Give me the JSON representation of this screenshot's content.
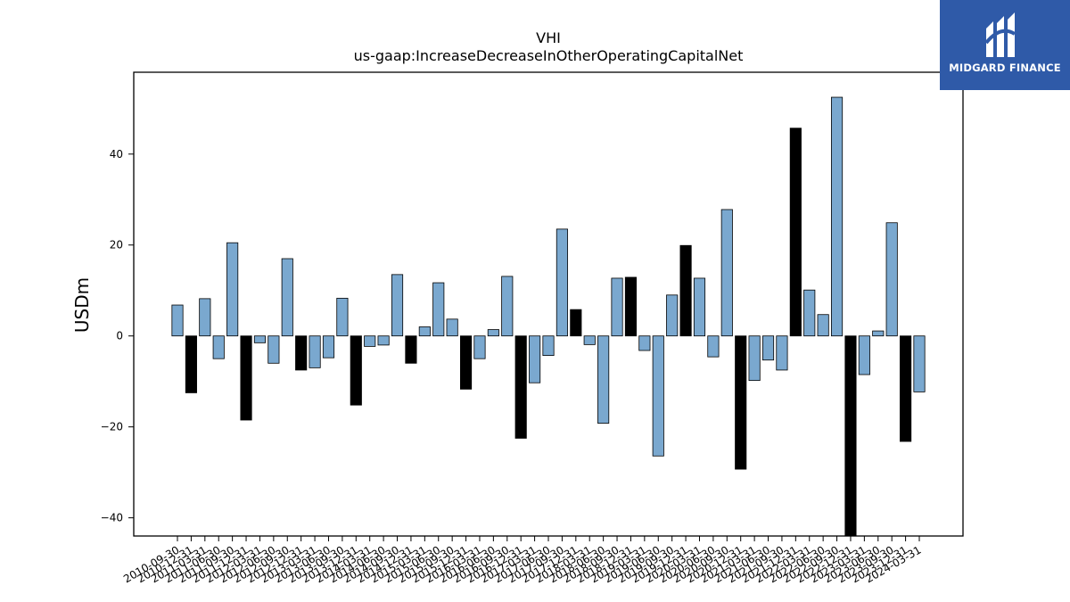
{
  "logo": {
    "text": "MIDGARD FINANCE"
  },
  "chart_data": {
    "type": "bar",
    "title": "VHI",
    "subtitle": "us-gaap:IncreaseDecreaseInOtherOperatingCapitalNet",
    "xlabel": "",
    "ylabel": "USDm",
    "ylim": [
      -44,
      58
    ],
    "yticks": [
      -40,
      -20,
      0,
      20,
      40
    ],
    "grid": false,
    "colors": {
      "highlight": "#000000",
      "normal": "#7aa8cf",
      "edge": "#000000"
    },
    "categories": [
      "2010-09-30",
      "2010-12-31",
      "2011-03-31",
      "2011-06-30",
      "2011-09-30",
      "2011-12-31",
      "2012-03-31",
      "2012-06-30",
      "2012-09-30",
      "2012-12-31",
      "2013-03-31",
      "2013-06-30",
      "2013-09-30",
      "2013-12-31",
      "2014-03-31",
      "2014-06-30",
      "2014-09-30",
      "2014-12-31",
      "2015-03-31",
      "2015-06-30",
      "2015-09-30",
      "2015-12-31",
      "2016-03-31",
      "2016-06-30",
      "2016-09-30",
      "2016-12-31",
      "2017-03-31",
      "2017-06-30",
      "2017-09-30",
      "2017-12-31",
      "2018-03-31",
      "2018-06-30",
      "2018-09-30",
      "2018-12-31",
      "2019-03-31",
      "2019-06-30",
      "2019-09-30",
      "2019-12-31",
      "2020-03-31",
      "2020-06-30",
      "2020-09-30",
      "2020-12-31",
      "2021-03-31",
      "2021-06-30",
      "2021-09-30",
      "2021-12-31",
      "2022-03-31",
      "2022-06-30",
      "2022-09-30",
      "2022-12-31",
      "2023-03-31",
      "2023-06-30",
      "2023-09-30",
      "2023-12-31",
      "2024-03-31"
    ],
    "values": [
      6.8,
      -12.5,
      8.2,
      -5.0,
      20.5,
      -18.5,
      -1.5,
      -6.0,
      17.0,
      -7.5,
      -7.0,
      -4.8,
      8.3,
      -15.2,
      -2.3,
      -2.0,
      13.5,
      -6.0,
      2.0,
      11.7,
      3.7,
      -11.7,
      -5.0,
      1.4,
      13.1,
      -22.5,
      -10.3,
      -4.3,
      23.5,
      5.8,
      -1.9,
      -19.2,
      12.7,
      12.9,
      -3.2,
      -26.4,
      9.0,
      19.9,
      12.7,
      -4.6,
      27.8,
      -29.3,
      -9.8,
      -5.3,
      -7.5,
      45.7,
      10.1,
      4.7,
      52.5,
      -44.0,
      -8.5,
      1.1,
      24.9,
      -23.2,
      -12.3
    ],
    "highlighted": [
      false,
      true,
      false,
      false,
      false,
      true,
      false,
      false,
      false,
      true,
      false,
      false,
      false,
      true,
      false,
      false,
      false,
      true,
      false,
      false,
      false,
      true,
      false,
      false,
      false,
      true,
      false,
      false,
      false,
      true,
      false,
      false,
      false,
      true,
      false,
      false,
      false,
      true,
      false,
      false,
      false,
      true,
      false,
      false,
      false,
      true,
      false,
      false,
      false,
      true,
      false,
      false,
      false,
      true,
      false
    ]
  }
}
